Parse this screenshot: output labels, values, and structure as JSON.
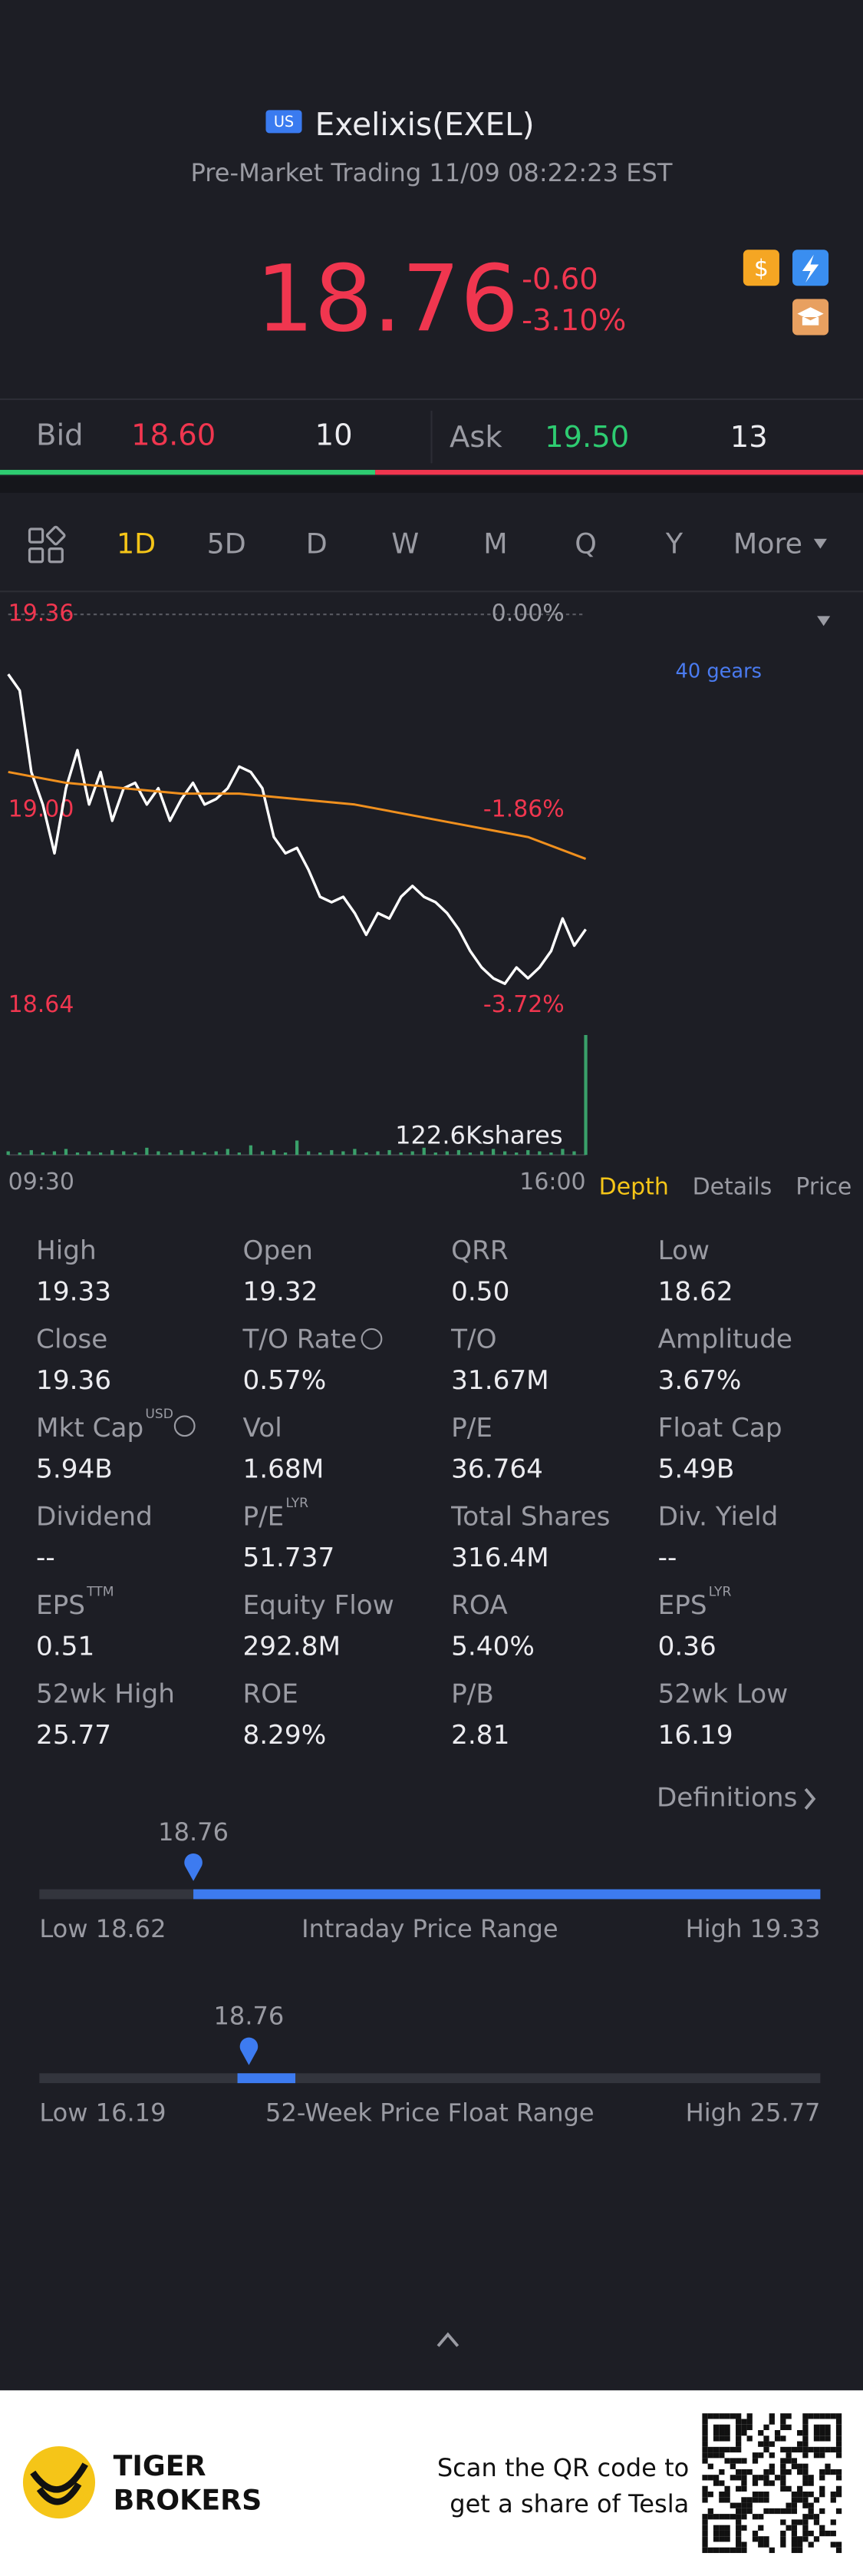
{
  "header": {
    "market": "US",
    "name": "Exelixis(EXEL)",
    "status": "Pre-Market Trading 11/09 08:22:23 EST"
  },
  "quote": {
    "price": "18.76",
    "change": "-0.60",
    "change_pct": "-3.10%"
  },
  "order_book": {
    "bid_label": "Bid",
    "bid": "18.60",
    "bid_size": 10,
    "ask_label": "Ask",
    "ask": "19.50",
    "ask_size": 13
  },
  "tabs": [
    "1D",
    "5D",
    "D",
    "W",
    "M",
    "Q",
    "Y",
    "More"
  ],
  "chart_data": {
    "type": "line",
    "ylim": [
      18.64,
      19.36
    ],
    "yticks": [
      19.36,
      {
        "value": 19,
        "label": "19.00"
      },
      18.64
    ],
    "y2lim": [
      -3.72,
      0
    ],
    "y2ticks": [
      {
        "value": 0,
        "label": "0.00%"
      },
      {
        "value": -1.86,
        "label": "-1.86%"
      },
      {
        "value": -3.72,
        "label": "-3.72%"
      }
    ],
    "x_labels": [
      "09:30",
      "16:00"
    ],
    "gear_label": "40 gears",
    "series": [
      {
        "color": "#ffffff",
        "values": [
          19.25,
          19.22,
          19.07,
          19.01,
          18.92,
          19.04,
          19.11,
          19.01,
          19.07,
          18.98,
          19.04,
          19.05,
          19.01,
          19.04,
          18.98,
          19.02,
          19.05,
          19.01,
          19.02,
          19.04,
          19.08,
          19.07,
          19.04,
          18.95,
          18.92,
          18.93,
          18.89,
          18.84,
          18.83,
          18.84,
          18.81,
          18.77,
          18.81,
          18.8,
          18.84,
          18.86,
          18.84,
          18.83,
          18.81,
          18.78,
          18.74,
          18.71,
          18.69,
          18.68,
          18.71,
          18.69,
          18.71,
          18.74,
          18.8,
          18.75,
          18.78
        ]
      },
      {
        "color": "#f0901e",
        "values": [
          19.07,
          19.05,
          19.04,
          19.03,
          19.03,
          19.02,
          19.01,
          18.99,
          18.97,
          18.95,
          18.91
        ]
      }
    ],
    "volume": {
      "label": "122.6Kshares",
      "color": "#3aa06a",
      "values": [
        3,
        2,
        4,
        2,
        3,
        5,
        2,
        3,
        2,
        4,
        3,
        2,
        6,
        3,
        2,
        4,
        3,
        2,
        3,
        5,
        2,
        8,
        3,
        4,
        2,
        12,
        3,
        2,
        4,
        3,
        5,
        2,
        3,
        4,
        2,
        3,
        6,
        2,
        3,
        4,
        2,
        3,
        5,
        3,
        2,
        4,
        3,
        2,
        5,
        3,
        100
      ]
    }
  },
  "chart_tabs": [
    "Depth",
    "Details",
    "Price"
  ],
  "stats": [
    {
      "label": "High",
      "value": "19.33"
    },
    {
      "label": "Open",
      "value": "19.32"
    },
    {
      "label": "QRR",
      "value": "0.50"
    },
    {
      "label": "Low",
      "value": "18.62"
    },
    {
      "label": "Close",
      "value": "19.36"
    },
    {
      "label": "T/O Rate",
      "value": "0.57%"
    },
    {
      "label": "T/O",
      "value": "31.67M"
    },
    {
      "label": "Amplitude",
      "value": "3.67%"
    },
    {
      "label": "Mkt Cap",
      "sup": "USD",
      "value": "5.94B"
    },
    {
      "label": "Vol",
      "value": "1.68M"
    },
    {
      "label": "P/E",
      "value": "36.764"
    },
    {
      "label": "Float Cap",
      "value": "5.49B"
    },
    {
      "label": "Dividend",
      "value": "--"
    },
    {
      "label": "P/E",
      "sup": "LYR",
      "value": "51.737"
    },
    {
      "label": "Total Shares",
      "value": "316.4M"
    },
    {
      "label": "Div. Yield",
      "value": "--"
    },
    {
      "label": "EPS",
      "sup": "TTM",
      "value": "0.51"
    },
    {
      "label": "Equity Flow",
      "value": "292.8M"
    },
    {
      "label": "ROA",
      "value": "5.40%"
    },
    {
      "label": "EPS",
      "sup": "LYR",
      "value": "0.36"
    },
    {
      "label": "52wk High",
      "value": "25.77"
    },
    {
      "label": "ROE",
      "value": "8.29%"
    },
    {
      "label": "P/B",
      "value": "2.81"
    },
    {
      "label": "52wk Low",
      "value": "16.19"
    }
  ],
  "definitions": "Definitions",
  "ranges": [
    {
      "current": 18.76,
      "low_text": "Low",
      "low": 18.62,
      "high_text": "High",
      "high": 19.33,
      "title": "Intraday Price Range"
    },
    {
      "current": 18.76,
      "low_text": "Low",
      "low": 16.19,
      "high_text": "High",
      "high": 25.77,
      "title": "52-Week Price Float Range"
    }
  ],
  "footer": {
    "brand": [
      "TIGER",
      "BROKERS"
    ],
    "cta": [
      "Scan the QR code to",
      "get a share of Tesla"
    ]
  }
}
